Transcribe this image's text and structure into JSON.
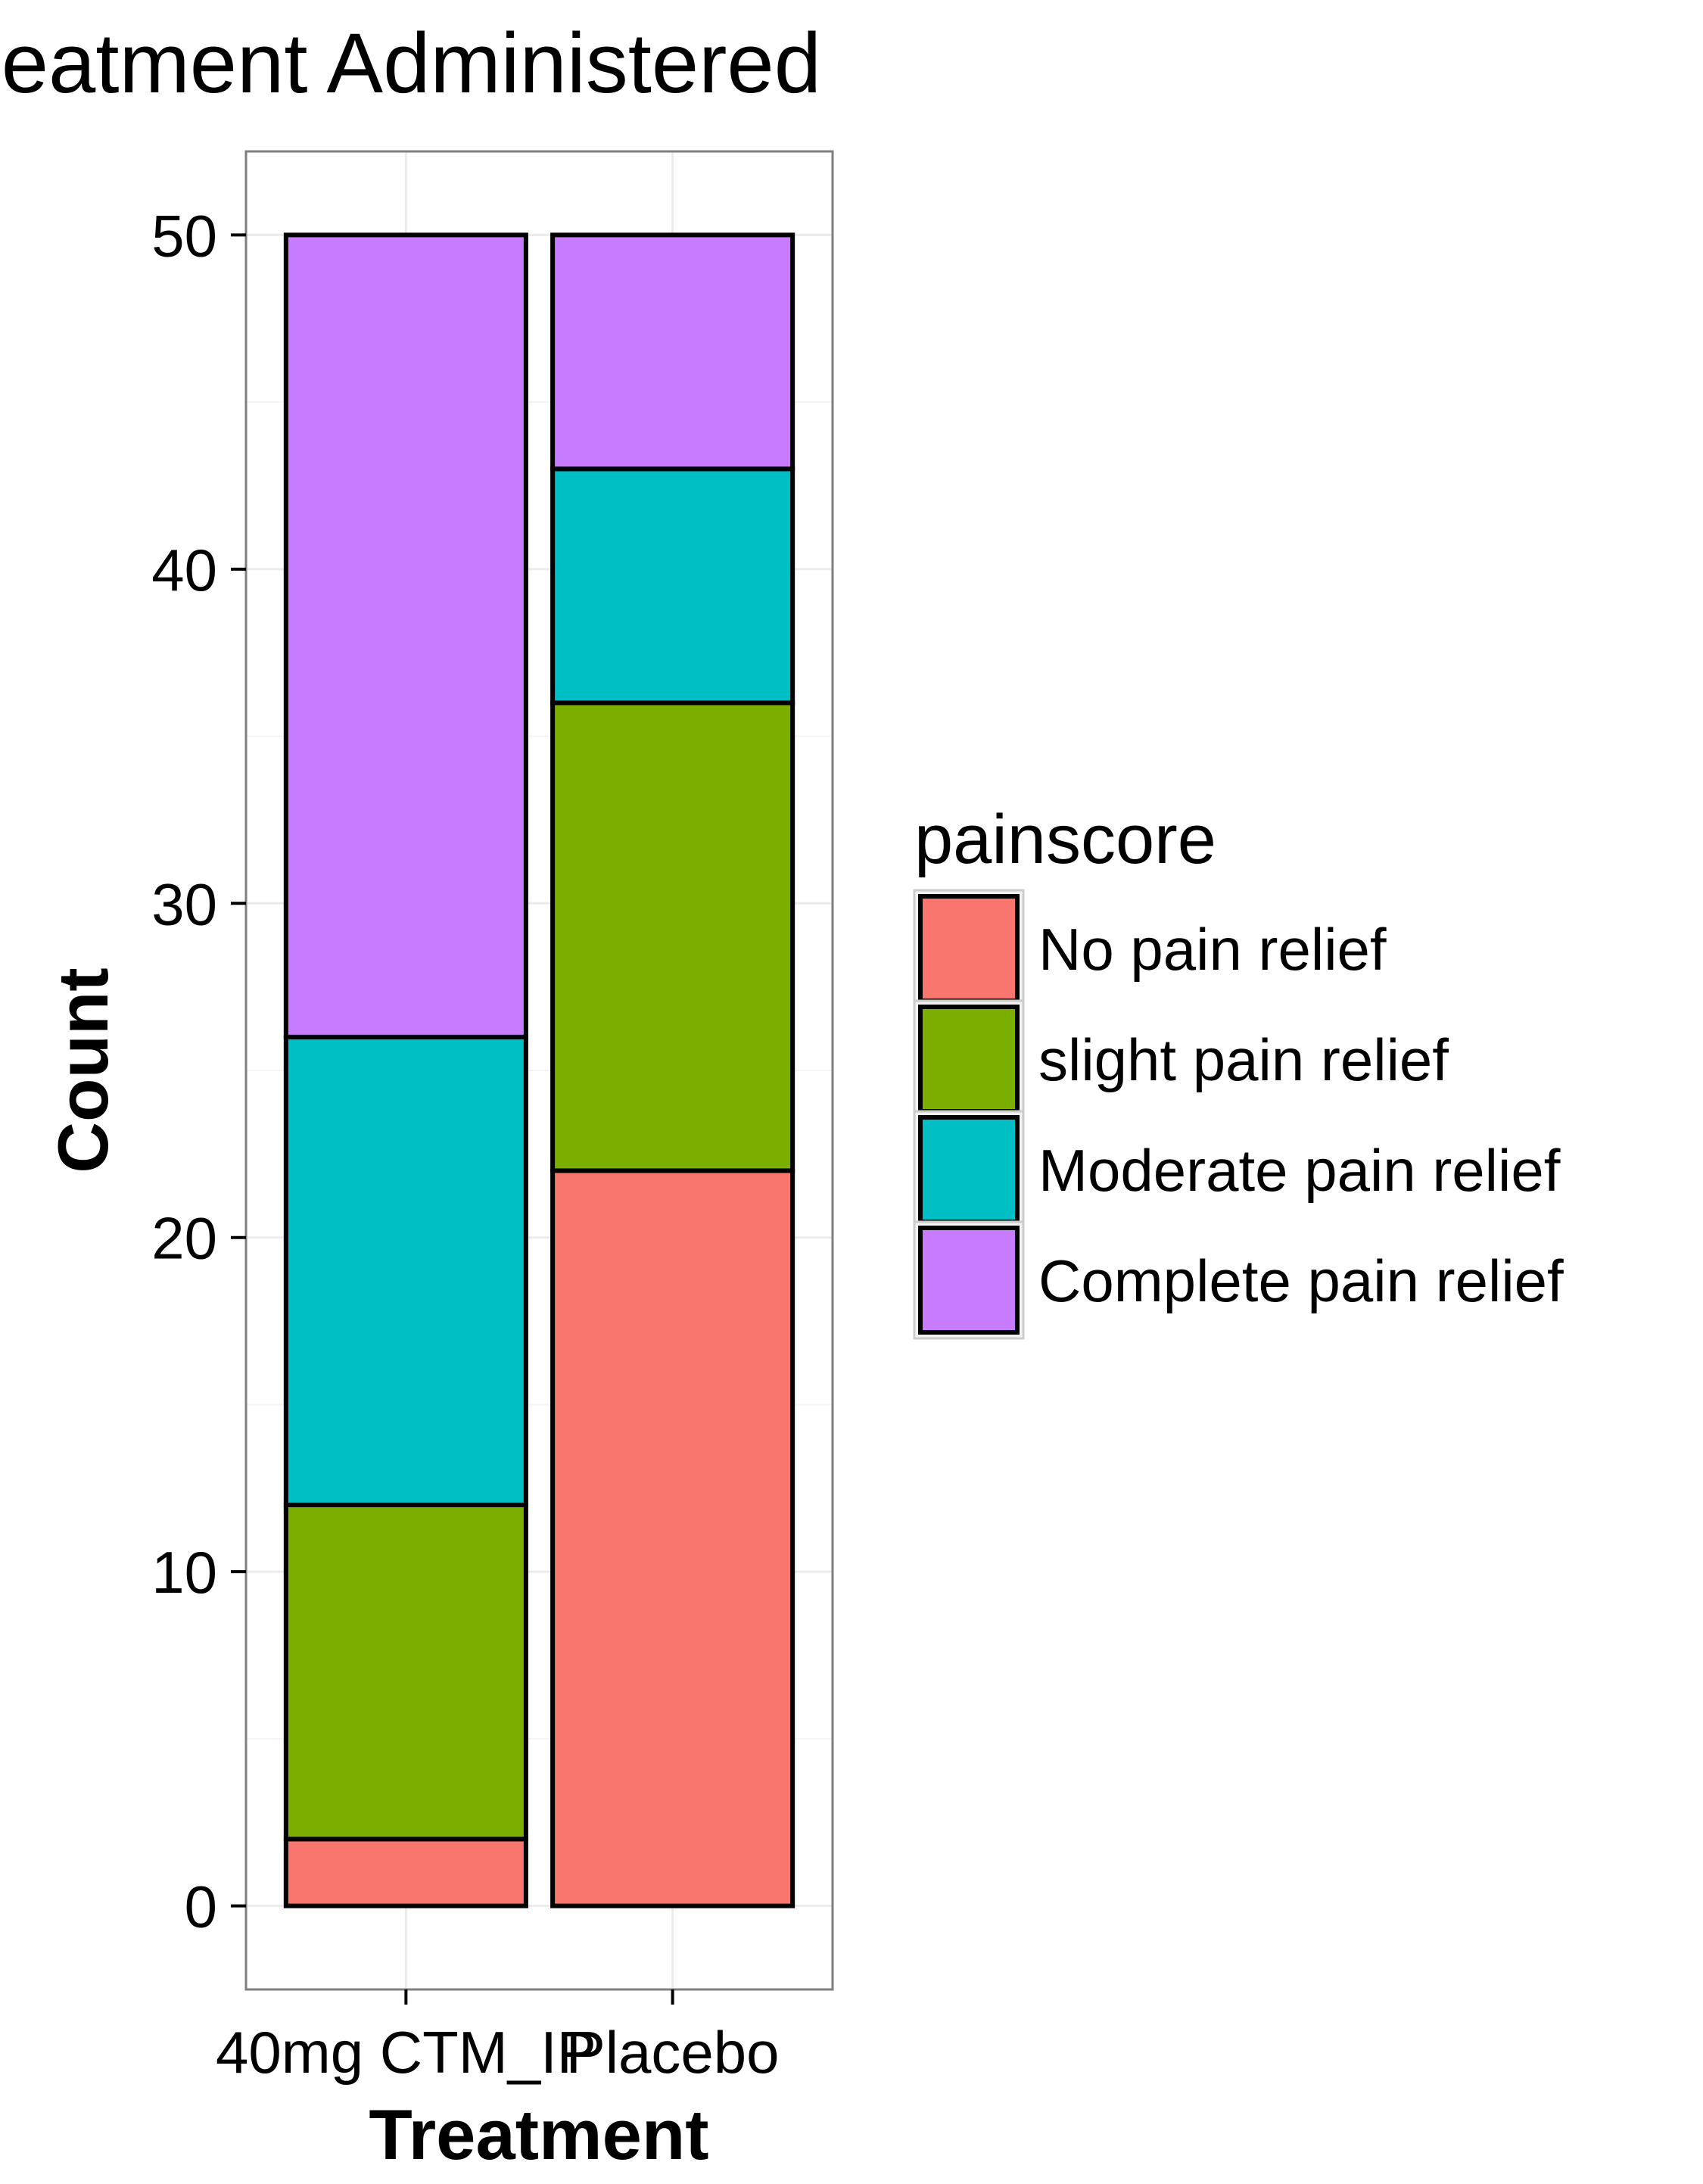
{
  "chart_data": {
    "type": "bar",
    "stacked": true,
    "title": "Count Grouped by Treatment Administered",
    "xlabel": "Treatment",
    "ylabel": "Count",
    "categories": [
      "40mg CTM_IP",
      "Placebo"
    ],
    "series": [
      {
        "name": "No pain relief",
        "color": "#F8766D",
        "values": [
          2,
          22
        ]
      },
      {
        "name": "slight pain relief",
        "color": "#7CAE00",
        "values": [
          10,
          14
        ]
      },
      {
        "name": "Moderate pain relief",
        "color": "#00BFC4",
        "values": [
          14,
          7
        ]
      },
      {
        "name": "Complete pain relief",
        "color": "#C77CFF",
        "values": [
          24,
          7
        ]
      }
    ],
    "ylim": [
      -2.5,
      52.5
    ],
    "yticks": [
      0,
      10,
      20,
      30,
      40,
      50
    ],
    "legend_title": "painscore",
    "legend_position": "right",
    "grid": true,
    "panel_background": "#ffffff",
    "grid_color": "#ebebeb",
    "panel_border_color": "#7f7f7f",
    "bar_outline_color": "#000000"
  }
}
